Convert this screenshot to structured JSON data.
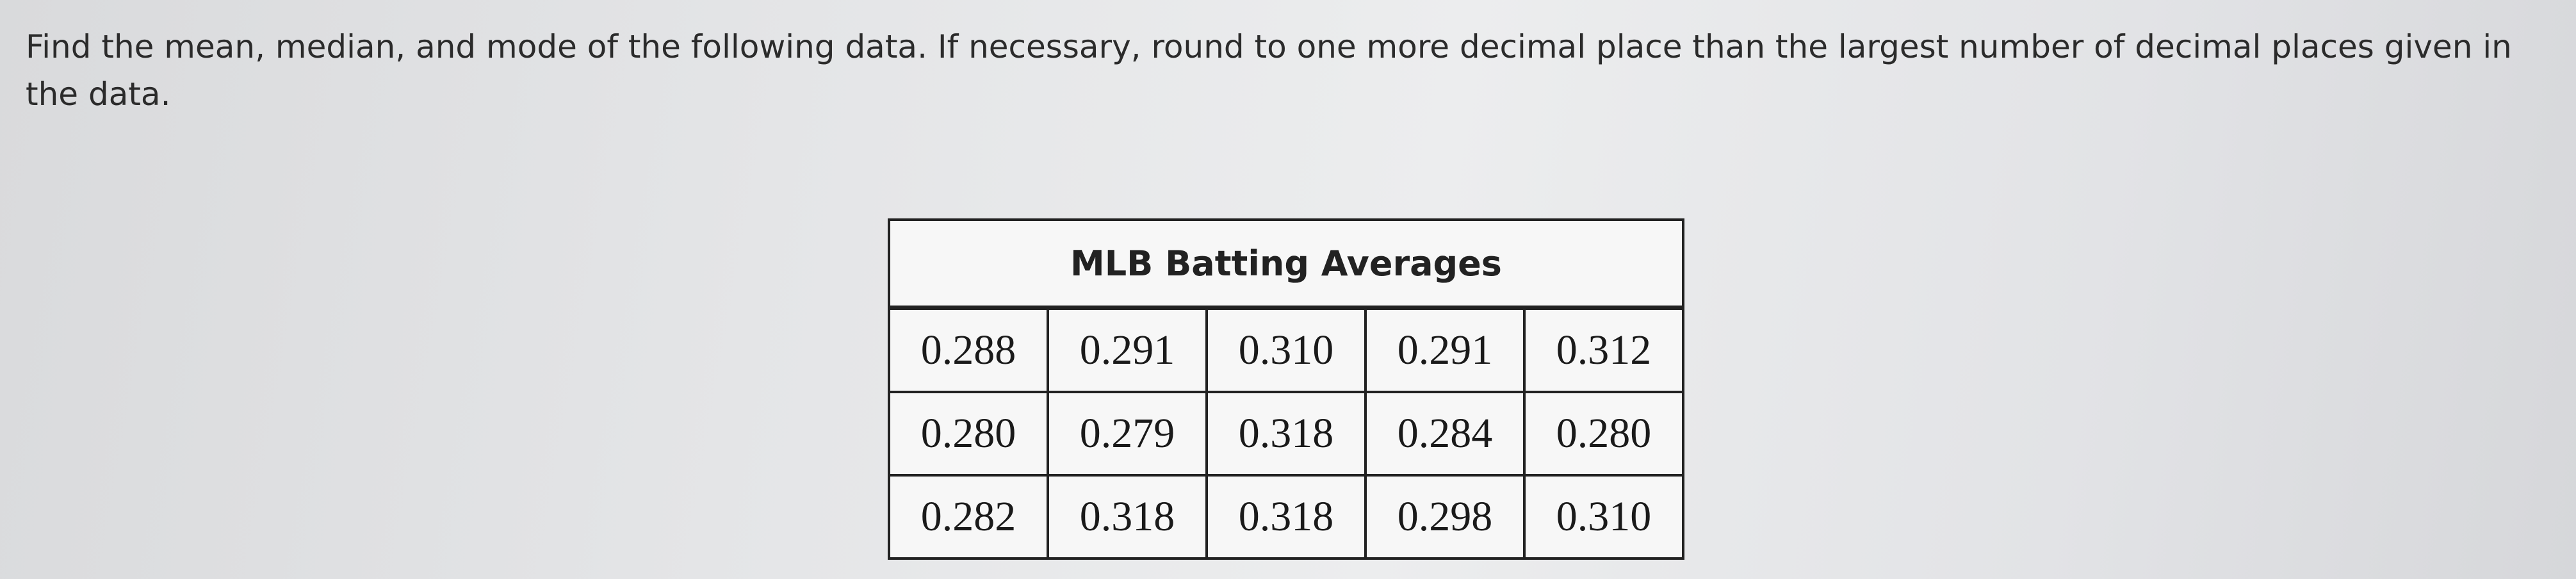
{
  "question": "Find the mean, median, and mode of the following data. If necessary, round to one more decimal place than the largest number of decimal places given in the data.",
  "table": {
    "title": "MLB Batting Averages",
    "rows": [
      [
        "0.288",
        "0.291",
        "0.310",
        "0.291",
        "0.312"
      ],
      [
        "0.280",
        "0.279",
        "0.318",
        "0.284",
        "0.280"
      ],
      [
        "0.282",
        "0.318",
        "0.318",
        "0.298",
        "0.310"
      ]
    ]
  }
}
